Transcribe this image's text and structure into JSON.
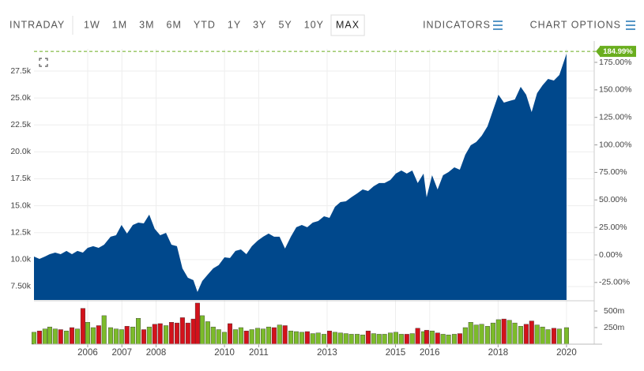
{
  "toolbar": {
    "intraday": "INTRADAY",
    "ranges": [
      "1W",
      "1M",
      "3M",
      "6M",
      "YTD",
      "1Y",
      "3Y",
      "5Y",
      "10Y",
      "MAX"
    ],
    "selected": 9,
    "indicators": "INDICATORS",
    "chart_options": "CHART OPTIONS"
  },
  "chart_data": {
    "type": "area",
    "x": [
      2004.43,
      2004.59,
      2004.75,
      2004.89,
      2005.05,
      2005.21,
      2005.38,
      2005.54,
      2005.7,
      2005.86,
      2006.0,
      2006.16,
      2006.32,
      2006.48,
      2006.67,
      2006.83,
      2006.99,
      2007.15,
      2007.32,
      2007.48,
      2007.64,
      2007.8,
      2007.96,
      2008.12,
      2008.29,
      2008.45,
      2008.61,
      2008.77,
      2008.93,
      2009.09,
      2009.21,
      2009.35,
      2009.51,
      2009.67,
      2009.83,
      2010.0,
      2010.16,
      2010.32,
      2010.48,
      2010.64,
      2010.8,
      2010.97,
      2011.13,
      2011.29,
      2011.45,
      2011.61,
      2011.77,
      2011.94,
      2012.1,
      2012.26,
      2012.42,
      2012.58,
      2012.74,
      2012.91,
      2013.07,
      2013.23,
      2013.39,
      2013.55,
      2013.71,
      2013.88,
      2014.04,
      2014.2,
      2014.36,
      2014.52,
      2014.68,
      2014.85,
      2015.01,
      2015.17,
      2015.33,
      2015.49,
      2015.65,
      2015.82,
      2015.91,
      2016.07,
      2016.23,
      2016.39,
      2016.55,
      2016.72,
      2016.88,
      2017.04,
      2017.2,
      2017.36,
      2017.52,
      2017.69,
      2017.85,
      2018.01,
      2018.17,
      2018.33,
      2018.49,
      2018.66,
      2018.82,
      2018.98,
      2019.14,
      2019.3,
      2019.46,
      2019.63,
      2019.79,
      2020.0
    ],
    "price": {
      "color": "#00488c",
      "values": [
        10280,
        10060,
        10280,
        10500,
        10650,
        10500,
        10800,
        10500,
        10800,
        10650,
        11090,
        11240,
        11090,
        11380,
        12120,
        12260,
        13210,
        12410,
        13210,
        13430,
        13360,
        14170,
        12850,
        12260,
        12480,
        11380,
        11240,
        9180,
        8310,
        8090,
        6990,
        8010,
        8600,
        9180,
        9480,
        10210,
        10140,
        10800,
        10940,
        10500,
        11240,
        11750,
        12120,
        12410,
        12120,
        12120,
        11020,
        12120,
        13000,
        13210,
        13000,
        13430,
        13580,
        14020,
        13870,
        14900,
        15340,
        15410,
        15780,
        16140,
        16510,
        16360,
        16800,
        17100,
        17100,
        17390,
        17980,
        18270,
        17980,
        18270,
        17100,
        17980,
        15780,
        17830,
        16510,
        17830,
        18120,
        18560,
        18340,
        19730,
        20610,
        20910,
        21490,
        22370,
        23840,
        25300,
        24570,
        24720,
        24860,
        26030,
        25300,
        23690,
        25450,
        26180,
        26770,
        26620,
        27130,
        29110
      ]
    },
    "volume": {
      "up_color": "#7cbb2a",
      "down_color": "#d3121b",
      "values": [
        180,
        200,
        230,
        260,
        230,
        220,
        200,
        250,
        230,
        540,
        330,
        250,
        280,
        430,
        250,
        230,
        220,
        270,
        260,
        390,
        220,
        260,
        300,
        310,
        280,
        330,
        320,
        400,
        320,
        380,
        620,
        430,
        340,
        260,
        220,
        180,
        310,
        220,
        250,
        200,
        220,
        240,
        230,
        260,
        250,
        290,
        280,
        200,
        190,
        180,
        190,
        160,
        170,
        150,
        200,
        180,
        170,
        160,
        150,
        150,
        140,
        200,
        160,
        150,
        150,
        170,
        180,
        150,
        150,
        160,
        240,
        190,
        210,
        200,
        170,
        150,
        140,
        150,
        160,
        250,
        330,
        290,
        300,
        270,
        320,
        370,
        380,
        360,
        320,
        270,
        300,
        350,
        290,
        260,
        220,
        240,
        230,
        250
      ],
      "ylim": [
        0,
        643
      ],
      "yticks": [
        {
          "value": 250,
          "label": "250m"
        },
        {
          "value": 500,
          "label": "500m"
        }
      ]
    },
    "xlim": [
      2004.43,
      2020.81
    ],
    "xticks": [
      2006,
      2007,
      2008,
      2010,
      2011,
      2013,
      2015,
      2016,
      2018,
      2020
    ],
    "ylim": [
      6250,
      29550
    ],
    "yticks": [
      {
        "value": 7500,
        "label": "7.50k"
      },
      {
        "value": 10000,
        "label": "10.0k"
      },
      {
        "value": 12500,
        "label": "12.5k"
      },
      {
        "value": 15000,
        "label": "15.0k"
      },
      {
        "value": 17500,
        "label": "17.5k"
      },
      {
        "value": 20000,
        "label": "20.0k"
      },
      {
        "value": 22500,
        "label": "22.5k"
      },
      {
        "value": 25000,
        "label": "25.0k"
      },
      {
        "value": 27500,
        "label": "27.5k"
      }
    ],
    "y2lim": [
      -40.9,
      187.2
    ],
    "y2ticks": [
      {
        "value": -25,
        "label": "-25.00%"
      },
      {
        "value": 0,
        "label": "0.00%"
      },
      {
        "value": 25,
        "label": "25.00%"
      },
      {
        "value": 50,
        "label": "50.00%"
      },
      {
        "value": 75,
        "label": "75.00%"
      },
      {
        "value": 100,
        "label": "100.00%"
      },
      {
        "value": 125,
        "label": "125.00%"
      },
      {
        "value": 150,
        "label": "150.00%"
      },
      {
        "value": 175,
        "label": "175.00%"
      }
    ],
    "last_change": {
      "value": 184.99,
      "label": "184.99%",
      "color": "#6aae1f"
    },
    "grid": true
  }
}
